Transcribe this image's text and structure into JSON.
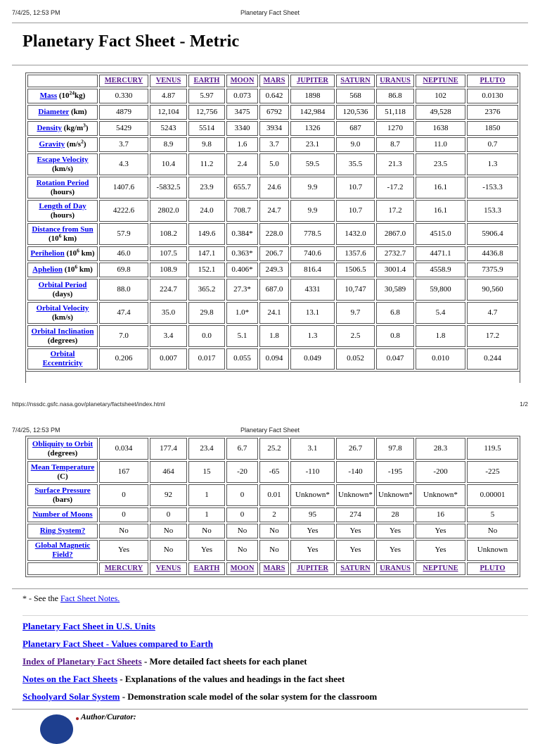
{
  "colors": {
    "link_blue": "#0000EE",
    "visited_purple": "#551A8B",
    "table_border": "#555555",
    "logo_navy": "#1e3f8f",
    "author_mark_red": "#aa2222"
  },
  "page1": {
    "header_left": "7/4/25, 12:53 PM",
    "header_center": "Planetary Fact Sheet",
    "title": "Planetary Fact Sheet - Metric",
    "footer_url": "https://nssdc.gsfc.nasa.gov/planetary/factsheet/index.html",
    "footer_page": "1/2"
  },
  "page2": {
    "header_left": "7/4/25, 12:53 PM",
    "header_center": "Planetary Fact Sheet"
  },
  "planets": [
    "MERCURY",
    "VENUS",
    "EARTH",
    "MOON",
    "MARS",
    "JUPITER",
    "SATURN",
    "URANUS",
    "NEPTUNE",
    "PLUTO"
  ],
  "table1": {
    "rows": [
      {
        "label": "Mass",
        "unit_pre": "(10",
        "unit_sup": "24",
        "unit_post": "kg)",
        "two_line": false,
        "values": [
          "0.330",
          "4.87",
          "5.97",
          "0.073",
          "0.642",
          "1898",
          "568",
          "86.8",
          "102",
          "0.0130"
        ]
      },
      {
        "label": "Diameter",
        "unit_pre": "(km)",
        "two_line": false,
        "values": [
          "4879",
          "12,104",
          "12,756",
          "3475",
          "6792",
          "142,984",
          "120,536",
          "51,118",
          "49,528",
          "2376"
        ]
      },
      {
        "label": "Density",
        "unit_pre": "(kg/m",
        "unit_sup": "3",
        "unit_post": ")",
        "two_line": false,
        "values": [
          "5429",
          "5243",
          "5514",
          "3340",
          "3934",
          "1326",
          "687",
          "1270",
          "1638",
          "1850"
        ]
      },
      {
        "label": "Gravity",
        "unit_pre": "(m/s",
        "unit_sup": "2",
        "unit_post": ")",
        "two_line": false,
        "values": [
          "3.7",
          "8.9",
          "9.8",
          "1.6",
          "3.7",
          "23.1",
          "9.0",
          "8.7",
          "11.0",
          "0.7"
        ]
      },
      {
        "label": "Escape Velocity",
        "unit_pre": "(km/s)",
        "two_line": true,
        "values": [
          "4.3",
          "10.4",
          "11.2",
          "2.4",
          "5.0",
          "59.5",
          "35.5",
          "21.3",
          "23.5",
          "1.3"
        ]
      },
      {
        "label": "Rotation Period",
        "unit_pre": "(hours)",
        "two_line": true,
        "values": [
          "1407.6",
          "-5832.5",
          "23.9",
          "655.7",
          "24.6",
          "9.9",
          "10.7",
          "-17.2",
          "16.1",
          "-153.3"
        ]
      },
      {
        "label": "Length of Day",
        "unit_pre": "(hours)",
        "two_line": true,
        "values": [
          "4222.6",
          "2802.0",
          "24.0",
          "708.7",
          "24.7",
          "9.9",
          "10.7",
          "17.2",
          "16.1",
          "153.3"
        ]
      },
      {
        "label": "Distance from Sun",
        "unit_pre": "(10",
        "unit_sup": "6",
        "unit_post": " km)",
        "two_line": true,
        "values": [
          "57.9",
          "108.2",
          "149.6",
          "0.384*",
          "228.0",
          "778.5",
          "1432.0",
          "2867.0",
          "4515.0",
          "5906.4"
        ]
      },
      {
        "label": "Perihelion",
        "unit_pre": "(10",
        "unit_sup": "6",
        "unit_post": " km)",
        "two_line": false,
        "values": [
          "46.0",
          "107.5",
          "147.1",
          "0.363*",
          "206.7",
          "740.6",
          "1357.6",
          "2732.7",
          "4471.1",
          "4436.8"
        ]
      },
      {
        "label": "Aphelion",
        "unit_pre": "(10",
        "unit_sup": "6",
        "unit_post": " km)",
        "two_line": false,
        "values": [
          "69.8",
          "108.9",
          "152.1",
          "0.406*",
          "249.3",
          "816.4",
          "1506.5",
          "3001.4",
          "4558.9",
          "7375.9"
        ]
      },
      {
        "label": "Orbital Period",
        "unit_pre": "(days)",
        "two_line": true,
        "values": [
          "88.0",
          "224.7",
          "365.2",
          "27.3*",
          "687.0",
          "4331",
          "10,747",
          "30,589",
          "59,800",
          "90,560"
        ]
      },
      {
        "label": "Orbital Velocity",
        "unit_pre": "(km/s)",
        "two_line": true,
        "values": [
          "47.4",
          "35.0",
          "29.8",
          "1.0*",
          "24.1",
          "13.1",
          "9.7",
          "6.8",
          "5.4",
          "4.7"
        ]
      },
      {
        "label": "Orbital Inclination",
        "unit_pre": "(degrees)",
        "two_line": true,
        "values": [
          "7.0",
          "3.4",
          "0.0",
          "5.1",
          "1.8",
          "1.3",
          "2.5",
          "0.8",
          "1.8",
          "17.2"
        ]
      },
      {
        "label": "Orbital Eccentricity",
        "two_line": false,
        "values": [
          "0.206",
          "0.007",
          "0.017",
          "0.055",
          "0.094",
          "0.049",
          "0.052",
          "0.047",
          "0.010",
          "0.244"
        ]
      }
    ]
  },
  "table2": {
    "rows": [
      {
        "label": "Obliquity to Orbit",
        "unit_pre": "(degrees)",
        "two_line": true,
        "values": [
          "0.034",
          "177.4",
          "23.4",
          "6.7",
          "25.2",
          "3.1",
          "26.7",
          "97.8",
          "28.3",
          "119.5"
        ]
      },
      {
        "label": "Mean Temperature",
        "unit_pre": "(C)",
        "two_line": true,
        "values": [
          "167",
          "464",
          "15",
          "-20",
          "-65",
          "-110",
          "-140",
          "-195",
          "-200",
          "-225"
        ]
      },
      {
        "label": "Surface Pressure",
        "unit_pre": "(bars)",
        "two_line": true,
        "values": [
          "0",
          "92",
          "1",
          "0",
          "0.01",
          "Unknown*",
          "Unknown*",
          "Unknown*",
          "Unknown*",
          "0.00001"
        ]
      },
      {
        "label": "Number of Moons",
        "two_line": false,
        "values": [
          "0",
          "0",
          "1",
          "0",
          "2",
          "95",
          "274",
          "28",
          "16",
          "5"
        ]
      },
      {
        "label": "Ring System?",
        "two_line": false,
        "values": [
          "No",
          "No",
          "No",
          "No",
          "No",
          "Yes",
          "Yes",
          "Yes",
          "Yes",
          "No"
        ]
      },
      {
        "label": "Global Magnetic Field?",
        "two_line": false,
        "values": [
          "Yes",
          "No",
          "Yes",
          "No",
          "No",
          "Yes",
          "Yes",
          "Yes",
          "Yes",
          "Unknown"
        ]
      }
    ]
  },
  "note": {
    "prefix": "* - See the ",
    "link": "Fact Sheet Notes."
  },
  "links": [
    {
      "label": "Planetary Fact Sheet in U.S. Units",
      "desc": "",
      "visited": false
    },
    {
      "label": "Planetary Fact Sheet - Values compared to Earth",
      "desc": "",
      "visited": false
    },
    {
      "label": "Index of Planetary Fact Sheets",
      "desc": " - More detailed fact sheets for each planet",
      "visited": true
    },
    {
      "label": "Notes on the Fact Sheets",
      "desc": " - Explanations of the values and headings in the fact sheet",
      "visited": false
    },
    {
      "label": "Schoolyard Solar System",
      "desc": " - Demonstration scale model of the solar system for the classroom",
      "visited": false
    }
  ],
  "author": {
    "label": "Author/Curator:"
  }
}
